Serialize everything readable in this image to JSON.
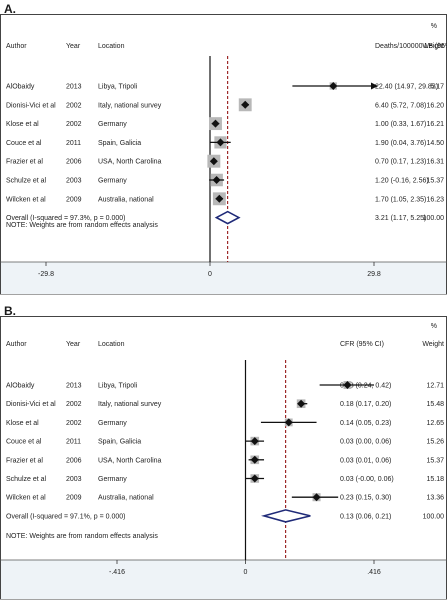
{
  "panels": [
    {
      "label": "A.",
      "headers": {
        "percent": "%",
        "author": "Author",
        "year": "Year",
        "location": "Location",
        "estimate": "Deaths/100000 LB (95% CI)",
        "weight": "Weight"
      },
      "overall_label": "Overall  (I-squared = 97.3%, p = 0.000)",
      "overall_ci": "3.21 (1.17, 5.25)",
      "overall_weight": "100.00",
      "note": "NOTE: Weights are from random effects analysis",
      "ticks": [
        "-29.8",
        "0",
        "29.8"
      ],
      "colors": {
        "marker": "#111111",
        "box": "#b8b8b8",
        "diamond": "#1f2a78",
        "refline": "#8b0000",
        "axisband": "#eef3f7"
      },
      "chart_data": {
        "type": "forest",
        "xlim": [
          -29.8,
          29.8
        ],
        "xticks": [
          -29.8,
          0,
          29.8
        ],
        "arrow_right_at_max": true,
        "studies": [
          {
            "author": "AlObaidy",
            "year": "2013",
            "location": "Libya, Tripoli",
            "est": 22.4,
            "lo": 14.97,
            "hi": 29.83,
            "ci": "22.40 (14.97, 29.83)",
            "weight": "5.17",
            "w": 5.17
          },
          {
            "author": "Dionisi-Vici et al",
            "year": "2002",
            "location": "Italy, national survey",
            "est": 6.4,
            "lo": 5.72,
            "hi": 7.08,
            "ci": "6.40 (5.72, 7.08)",
            "weight": "16.20",
            "w": 16.2
          },
          {
            "author": "Klose et al",
            "year": "2002",
            "location": "Germany",
            "est": 1.0,
            "lo": 0.33,
            "hi": 1.67,
            "ci": "1.00 (0.33, 1.67)",
            "weight": "16.21",
            "w": 16.21
          },
          {
            "author": "Couce et al",
            "year": "2011",
            "location": "Spain, Galicia",
            "est": 1.9,
            "lo": 0.04,
            "hi": 3.76,
            "ci": "1.90 (0.04, 3.76)",
            "weight": "14.50",
            "w": 14.5
          },
          {
            "author": "Frazier et al",
            "year": "2006",
            "location": "USA, North Carolina",
            "est": 0.7,
            "lo": 0.17,
            "hi": 1.23,
            "ci": "0.70 (0.17, 1.23)",
            "weight": "16.31",
            "w": 16.31
          },
          {
            "author": "Schulze et al",
            "year": "2003",
            "location": "Germany",
            "est": 1.2,
            "lo": -0.16,
            "hi": 2.56,
            "ci": "1.20 (-0.16, 2.56)",
            "weight": "15.37",
            "w": 15.37
          },
          {
            "author": "Wilcken et al",
            "year": "2009",
            "location": "Australia, national",
            "est": 1.7,
            "lo": 1.05,
            "hi": 2.35,
            "ci": "1.70 (1.05, 2.35)",
            "weight": "16.23",
            "w": 16.23
          }
        ],
        "overall": {
          "est": 3.21,
          "lo": 1.17,
          "hi": 5.25
        }
      }
    },
    {
      "label": "B.",
      "headers": {
        "percent": "%",
        "author": "Author",
        "year": "Year",
        "location": "Location",
        "estimate": "CFR (95% CI)",
        "weight": "Weight"
      },
      "overall_label": "Overall  (I-squared = 97.1%, p = 0.000)",
      "overall_ci": "0.13 (0.06, 0.21)",
      "overall_weight": "100.00",
      "note": "NOTE: Weights are from random effects analysis",
      "ticks": [
        "-.416",
        "0",
        ".416"
      ],
      "colors": {
        "marker": "#111111",
        "box": "#b8b8b8",
        "diamond": "#1f2a78",
        "refline": "#8b0000",
        "axisband": "#eef3f7"
      },
      "chart_data": {
        "type": "forest",
        "xlim": [
          -0.416,
          0.416
        ],
        "xticks": [
          -0.416,
          0,
          0.416
        ],
        "arrow_right_at_max": false,
        "studies": [
          {
            "author": "AlObaidy",
            "year": "2013",
            "location": "Libya, Tripoli",
            "est": 0.33,
            "lo": 0.24,
            "hi": 0.42,
            "ci": "0.33 (0.24, 0.42)",
            "weight": "12.71",
            "w": 12.71
          },
          {
            "author": "Dionisi-Vici et al",
            "year": "2002",
            "location": "Italy, national survey",
            "est": 0.18,
            "lo": 0.17,
            "hi": 0.2,
            "ci": "0.18 (0.17, 0.20)",
            "weight": "15.48",
            "w": 15.48
          },
          {
            "author": "Klose et al",
            "year": "2002",
            "location": "Germany",
            "est": 0.14,
            "lo": 0.05,
            "hi": 0.23,
            "ci": "0.14 (0.05, 0.23)",
            "weight": "12.65",
            "w": 12.65
          },
          {
            "author": "Couce et al",
            "year": "2011",
            "location": "Spain, Galicia",
            "est": 0.03,
            "lo": 0.0,
            "hi": 0.06,
            "ci": "0.03 (0.00, 0.06)",
            "weight": "15.26",
            "w": 15.26
          },
          {
            "author": "Frazier et al",
            "year": "2006",
            "location": "USA, North Carolina",
            "est": 0.03,
            "lo": 0.01,
            "hi": 0.06,
            "ci": "0.03 (0.01, 0.06)",
            "weight": "15.37",
            "w": 15.37
          },
          {
            "author": "Schulze et al",
            "year": "2003",
            "location": "Germany",
            "est": 0.03,
            "lo": -0.0,
            "hi": 0.06,
            "ci": "0.03 (-0.00, 0.06)",
            "weight": "15.18",
            "w": 15.18
          },
          {
            "author": "Wilcken et al",
            "year": "2009",
            "location": "Australia, national",
            "est": 0.23,
            "lo": 0.15,
            "hi": 0.3,
            "ci": "0.23 (0.15, 0.30)",
            "weight": "13.36",
            "w": 13.36
          }
        ],
        "overall": {
          "est": 0.13,
          "lo": 0.06,
          "hi": 0.21
        }
      }
    }
  ]
}
